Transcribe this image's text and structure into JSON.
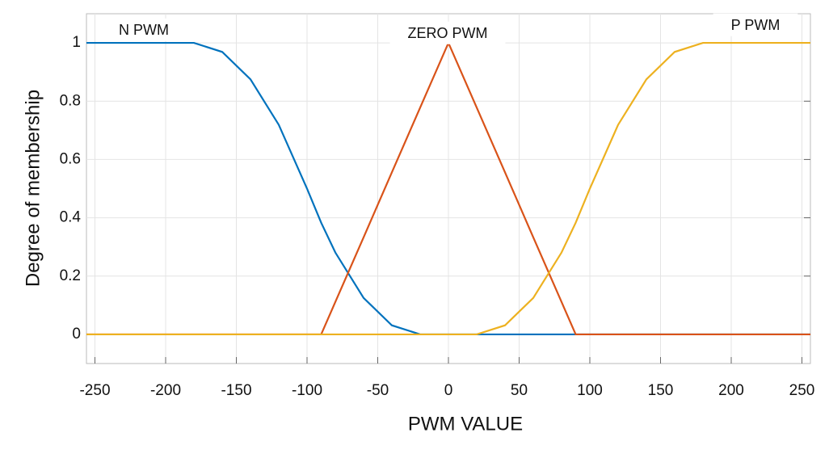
{
  "chart_data": {
    "type": "line",
    "xlabel": "PWM VALUE",
    "ylabel": "Degree of membership",
    "x": [
      -256,
      -180,
      -160,
      -140,
      -120,
      -100,
      -90,
      -80,
      -60,
      -40,
      -20,
      0,
      20,
      40,
      60,
      80,
      90,
      100,
      120,
      140,
      160,
      180,
      256
    ],
    "series": [
      {
        "name": "N PWM",
        "color": "#0072BD",
        "values": [
          1,
          1,
          0.969,
          0.875,
          0.719,
          0.5,
          0.383,
          0.281,
          0.125,
          0.031,
          0,
          0,
          0,
          0,
          0,
          0,
          0,
          0,
          0,
          0,
          0,
          0,
          0
        ]
      },
      {
        "name": "ZERO PWM",
        "color": "#D95319",
        "values": [
          0,
          0,
          0,
          0,
          0,
          0,
          0,
          0.111,
          0.333,
          0.556,
          0.778,
          1,
          0.778,
          0.556,
          0.333,
          0.111,
          0,
          0,
          0,
          0,
          0,
          0,
          0
        ]
      },
      {
        "name": "P PWM",
        "color": "#EDB120",
        "values": [
          0,
          0,
          0,
          0,
          0,
          0,
          0,
          0,
          0,
          0,
          0,
          0,
          0,
          0.031,
          0.125,
          0.281,
          0.383,
          0.5,
          0.719,
          0.875,
          0.969,
          1,
          1
        ]
      }
    ],
    "xlim": [
      -256,
      256
    ],
    "xticks": [
      -250,
      -200,
      -150,
      -100,
      -50,
      0,
      50,
      100,
      150,
      200,
      250
    ],
    "ylim": [
      -0.1,
      1.1
    ],
    "yticks": [
      0,
      0.2,
      0.4,
      0.6,
      0.8,
      1
    ],
    "grid": true
  }
}
